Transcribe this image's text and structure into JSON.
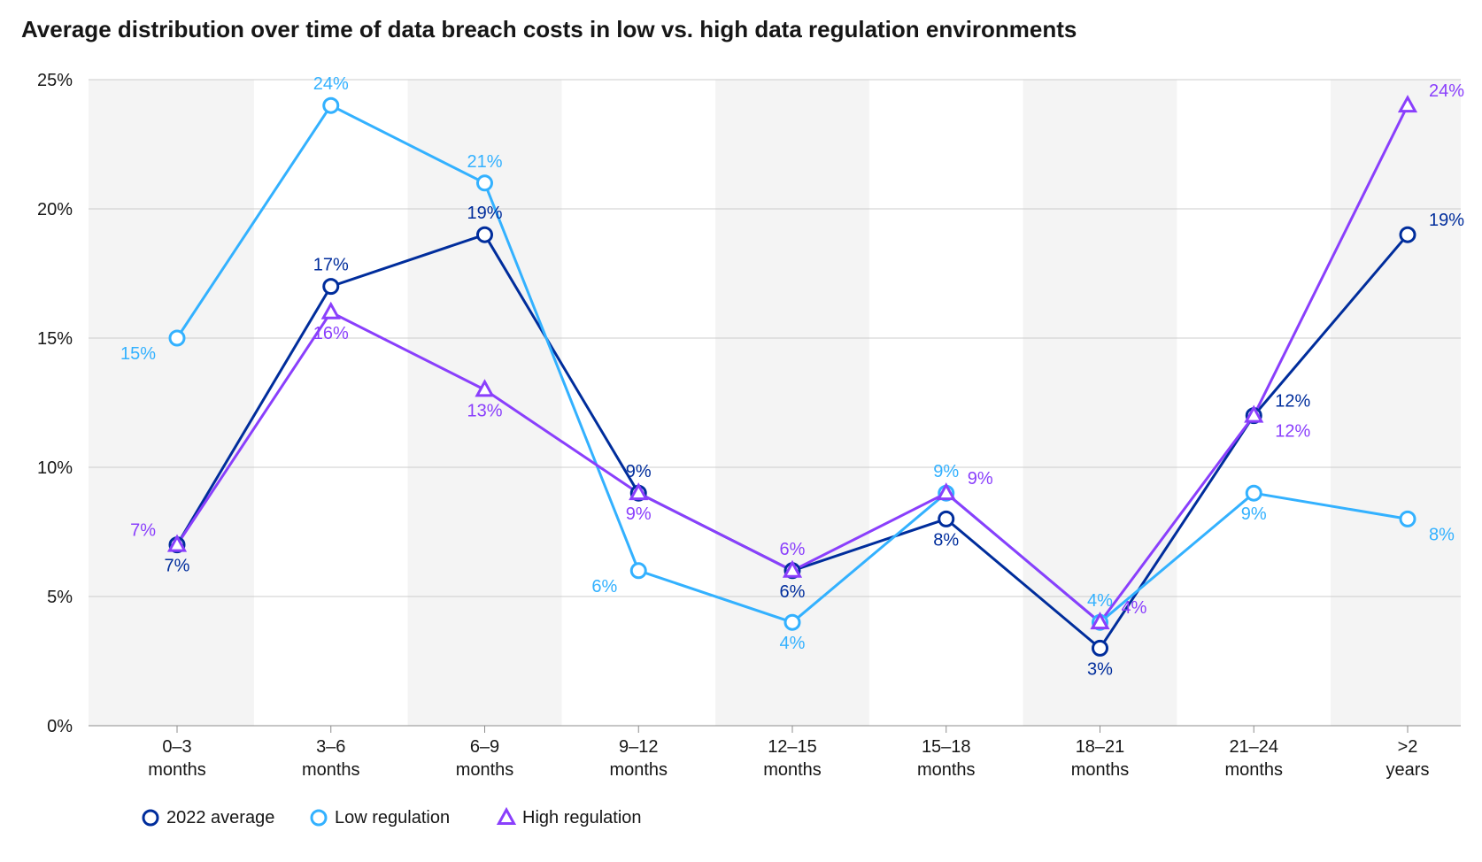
{
  "chart": {
    "type": "line",
    "title": "Average distribution over time of data breach costs in low vs. high data regulation environments",
    "title_fontsize": 26,
    "title_fontweight": 700,
    "title_color": "#161616",
    "background_color": "#ffffff",
    "plot_background_band_color": "#f4f4f4",
    "grid_color": "#cccccc",
    "axis_line_color": "#8d8d8d",
    "tick_label_color": "#161616",
    "tick_label_fontsize": 20,
    "xtick_label_fontsize": 20,
    "data_label_fontsize": 20,
    "legend_fontsize": 20,
    "line_width": 3,
    "marker_radius": 8,
    "marker_stroke_width": 3,
    "ylim": [
      0,
      25
    ],
    "ytick_step": 5,
    "y_unit": "%",
    "categories": [
      {
        "line1": "0–3",
        "line2": "months"
      },
      {
        "line1": "3–6",
        "line2": "months"
      },
      {
        "line1": "6–9",
        "line2": "months"
      },
      {
        "line1": "9–12",
        "line2": "months"
      },
      {
        "line1": "12–15",
        "line2": "months"
      },
      {
        "line1": "15–18",
        "line2": "months"
      },
      {
        "line1": "18–21",
        "line2": "months"
      },
      {
        "line1": "21–24",
        "line2": "months"
      },
      {
        "line1": ">2",
        "line2": "years"
      }
    ],
    "series": [
      {
        "id": "avg2022",
        "name": "2022 average",
        "color": "#002d9c",
        "marker": "circle",
        "values": [
          7,
          17,
          19,
          9,
          6,
          8,
          3,
          12,
          19
        ],
        "label_positions": [
          "below",
          "above",
          "above",
          "above",
          "below",
          "below",
          "below",
          "above-right",
          "above-right"
        ]
      },
      {
        "id": "lowreg",
        "name": "Low regulation",
        "color": "#33b1ff",
        "marker": "circle",
        "values": [
          15,
          24,
          21,
          6,
          4,
          9,
          4,
          9,
          8
        ],
        "label_positions": [
          "below-left",
          "above",
          "above",
          "below-left",
          "below",
          "above",
          "above",
          "below",
          "below-right"
        ]
      },
      {
        "id": "highreg",
        "name": "High regulation",
        "color": "#8a3ffc",
        "marker": "triangle",
        "values": [
          7,
          16,
          13,
          9,
          6,
          9,
          4,
          12,
          24
        ],
        "label_positions": [
          "above-left",
          "below",
          "below",
          "below",
          "above",
          "above-right",
          "above-right",
          "below-right",
          "above-right"
        ]
      }
    ],
    "legend": {
      "position": "bottom-left",
      "items": [
        "avg2022",
        "lowreg",
        "highreg"
      ]
    }
  }
}
